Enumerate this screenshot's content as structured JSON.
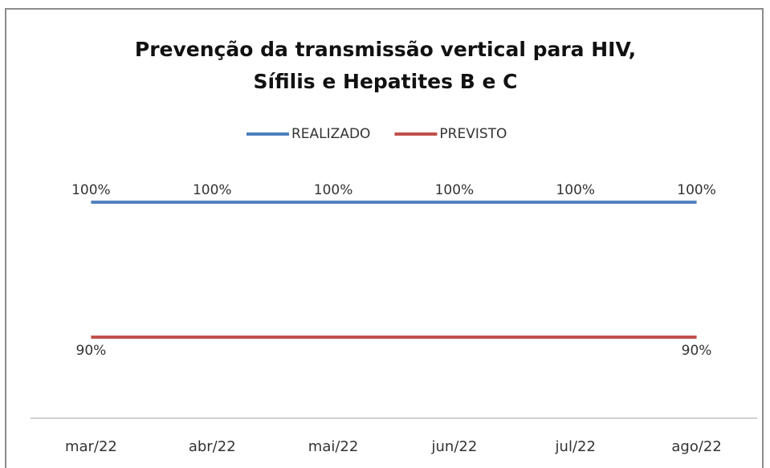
{
  "chart_data": {
    "type": "line",
    "title": "Prevenção da transmissão vertical para HIV, Sífilis e Hepatites B e C",
    "categories": [
      "mar/22",
      "abr/22",
      "mai/22",
      "jun/22",
      "jul/22",
      "ago/22"
    ],
    "series": [
      {
        "name": "REALIZADO",
        "color": "#4f81bd",
        "values": [
          100,
          100,
          100,
          100,
          100,
          100
        ],
        "value_labels": [
          "100%",
          "100%",
          "100%",
          "100%",
          "100%",
          "100%"
        ]
      },
      {
        "name": "PREVISTO",
        "color": "#c0504d",
        "values": [
          90,
          90,
          90,
          90,
          90,
          90
        ],
        "value_labels": [
          "90%",
          null,
          null,
          null,
          null,
          "90%"
        ]
      }
    ],
    "ylim": [
      84,
      101
    ],
    "legend": "top"
  }
}
